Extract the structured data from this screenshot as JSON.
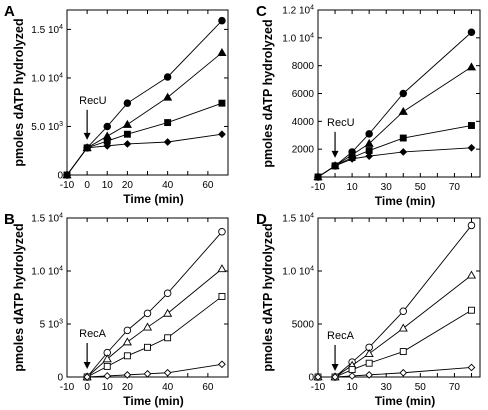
{
  "chart_data": [
    {
      "type": "line",
      "panel_letter": "A",
      "ylabel": "pmoles dATP hydrolyzed",
      "xlabel": "Time (min)",
      "xlim": [
        -10,
        70
      ],
      "ylim": [
        0,
        17000
      ],
      "xticks": [
        -10,
        0,
        10,
        20,
        30,
        40,
        50,
        60
      ],
      "xtick_labels": [
        "-10",
        "0",
        "10",
        "20",
        "",
        "40",
        "",
        "60"
      ],
      "yticks": [
        {
          "value": 0,
          "base": "0",
          "exp": ""
        },
        {
          "value": 5000,
          "base": "5.0 10",
          "exp": "3"
        },
        {
          "value": 10000,
          "base": "1.0 10",
          "exp": "4"
        },
        {
          "value": 15000,
          "base": "1.5 10",
          "exp": "4"
        }
      ],
      "annotation": {
        "label": "RecU",
        "x": 0
      },
      "series": [
        {
          "marker": "circle",
          "filled": true,
          "x": [
            -10,
            0,
            10,
            20,
            40,
            67
          ],
          "y": [
            0,
            2800,
            5000,
            7400,
            10100,
            15900
          ]
        },
        {
          "marker": "triangle",
          "filled": true,
          "x": [
            -10,
            0,
            10,
            20,
            40,
            67
          ],
          "y": [
            0,
            2800,
            4000,
            5200,
            8000,
            12600
          ]
        },
        {
          "marker": "square",
          "filled": true,
          "x": [
            -10,
            0,
            10,
            20,
            40,
            67
          ],
          "y": [
            0,
            2800,
            3500,
            4200,
            5400,
            7400
          ]
        },
        {
          "marker": "diamond",
          "filled": true,
          "x": [
            -10,
            0,
            10,
            20,
            40,
            67
          ],
          "y": [
            0,
            2800,
            3000,
            3200,
            3400,
            4200
          ]
        }
      ]
    },
    {
      "type": "line",
      "panel_letter": "B",
      "ylabel": "pmoles dATP hydrolyzed",
      "xlabel": "Time (min)",
      "xlim": [
        -10,
        70
      ],
      "ylim": [
        0,
        15000
      ],
      "xticks": [
        -10,
        0,
        10,
        20,
        30,
        40,
        50,
        60
      ],
      "xtick_labels": [
        "-10",
        "0",
        "10",
        "20",
        "",
        "40",
        "",
        "60"
      ],
      "yticks": [
        {
          "value": 0,
          "base": "0",
          "exp": ""
        },
        {
          "value": 5000,
          "base": "5 10",
          "exp": "3"
        },
        {
          "value": 10000,
          "base": "1.0 10",
          "exp": "4"
        },
        {
          "value": 15000,
          "base": "1.5 10",
          "exp": "4"
        }
      ],
      "annotation": {
        "label": "RecA",
        "x": 0
      },
      "series": [
        {
          "marker": "circle",
          "filled": false,
          "x": [
            0,
            10,
            20,
            30,
            40,
            67
          ],
          "y": [
            0,
            2300,
            4400,
            6000,
            7900,
            13700
          ]
        },
        {
          "marker": "triangle",
          "filled": false,
          "x": [
            0,
            10,
            20,
            30,
            40,
            67
          ],
          "y": [
            0,
            1700,
            3300,
            4700,
            6000,
            10200
          ]
        },
        {
          "marker": "square",
          "filled": false,
          "x": [
            0,
            10,
            20,
            30,
            40,
            67
          ],
          "y": [
            0,
            1000,
            2000,
            2800,
            3700,
            7600
          ]
        },
        {
          "marker": "diamond",
          "filled": false,
          "x": [
            0,
            10,
            20,
            30,
            40,
            67
          ],
          "y": [
            0,
            100,
            200,
            300,
            400,
            1200
          ]
        }
      ]
    },
    {
      "type": "line",
      "panel_letter": "C",
      "ylabel": "pmoles dATP hydrolyzed",
      "xlabel": "Time (min)",
      "xlim": [
        -10,
        85
      ],
      "ylim": [
        0,
        12000
      ],
      "xticks": [
        -10,
        0,
        10,
        20,
        30,
        40,
        50,
        60,
        70,
        80
      ],
      "xtick_labels": [
        "-10",
        "",
        "10",
        "",
        "30",
        "",
        "50",
        "",
        "70",
        ""
      ],
      "yticks": [
        {
          "value": 2000,
          "base": "2000",
          "exp": ""
        },
        {
          "value": 4000,
          "base": "4000",
          "exp": ""
        },
        {
          "value": 6000,
          "base": "6000",
          "exp": ""
        },
        {
          "value": 8000,
          "base": "8000",
          "exp": ""
        },
        {
          "value": 10000,
          "base": "1.0 10",
          "exp": "4"
        },
        {
          "value": 12000,
          "base": "1.2 10",
          "exp": "4"
        }
      ],
      "annotation": {
        "label": "RecU",
        "x": 0
      },
      "series": [
        {
          "marker": "circle",
          "filled": true,
          "x": [
            -10,
            0,
            10,
            20,
            40,
            80
          ],
          "y": [
            0,
            800,
            1800,
            3100,
            6000,
            10400
          ]
        },
        {
          "marker": "triangle",
          "filled": true,
          "x": [
            -10,
            0,
            10,
            20,
            40,
            80
          ],
          "y": [
            0,
            800,
            1600,
            2400,
            4700,
            7900
          ]
        },
        {
          "marker": "square",
          "filled": true,
          "x": [
            -10,
            0,
            10,
            20,
            40,
            80
          ],
          "y": [
            0,
            800,
            1400,
            1900,
            2800,
            3700
          ]
        },
        {
          "marker": "diamond",
          "filled": true,
          "x": [
            -10,
            0,
            10,
            20,
            40,
            80
          ],
          "y": [
            0,
            800,
            1300,
            1500,
            1800,
            2100
          ]
        }
      ]
    },
    {
      "type": "line",
      "panel_letter": "D",
      "ylabel": "pmoles dATP hydrolyzed",
      "xlabel": "Time (min)",
      "xlim": [
        -10,
        85
      ],
      "ylim": [
        0,
        15000
      ],
      "xticks": [
        -10,
        0,
        10,
        20,
        30,
        40,
        50,
        60,
        70,
        80
      ],
      "xtick_labels": [
        "-10",
        "",
        "10",
        "",
        "30",
        "",
        "50",
        "",
        "70",
        ""
      ],
      "yticks": [
        {
          "value": 0,
          "base": "0",
          "exp": ""
        },
        {
          "value": 5000,
          "base": "5000",
          "exp": ""
        },
        {
          "value": 10000,
          "base": "1.0 10",
          "exp": "4"
        },
        {
          "value": 15000,
          "base": "1.5 10",
          "exp": "4"
        }
      ],
      "annotation": {
        "label": "RecA",
        "x": 0
      },
      "series": [
        {
          "marker": "circle",
          "filled": false,
          "x": [
            -10,
            0,
            10,
            20,
            40,
            80
          ],
          "y": [
            0,
            0,
            1400,
            2800,
            6200,
            14300
          ]
        },
        {
          "marker": "triangle",
          "filled": false,
          "x": [
            -10,
            0,
            10,
            20,
            40,
            80
          ],
          "y": [
            0,
            0,
            1100,
            2200,
            4600,
            9600
          ]
        },
        {
          "marker": "square",
          "filled": false,
          "x": [
            -10,
            0,
            10,
            20,
            40,
            80
          ],
          "y": [
            0,
            0,
            700,
            1300,
            2400,
            6300
          ]
        },
        {
          "marker": "diamond",
          "filled": false,
          "x": [
            -10,
            0,
            10,
            20,
            40,
            80
          ],
          "y": [
            0,
            0,
            100,
            200,
            400,
            900
          ]
        }
      ]
    }
  ]
}
